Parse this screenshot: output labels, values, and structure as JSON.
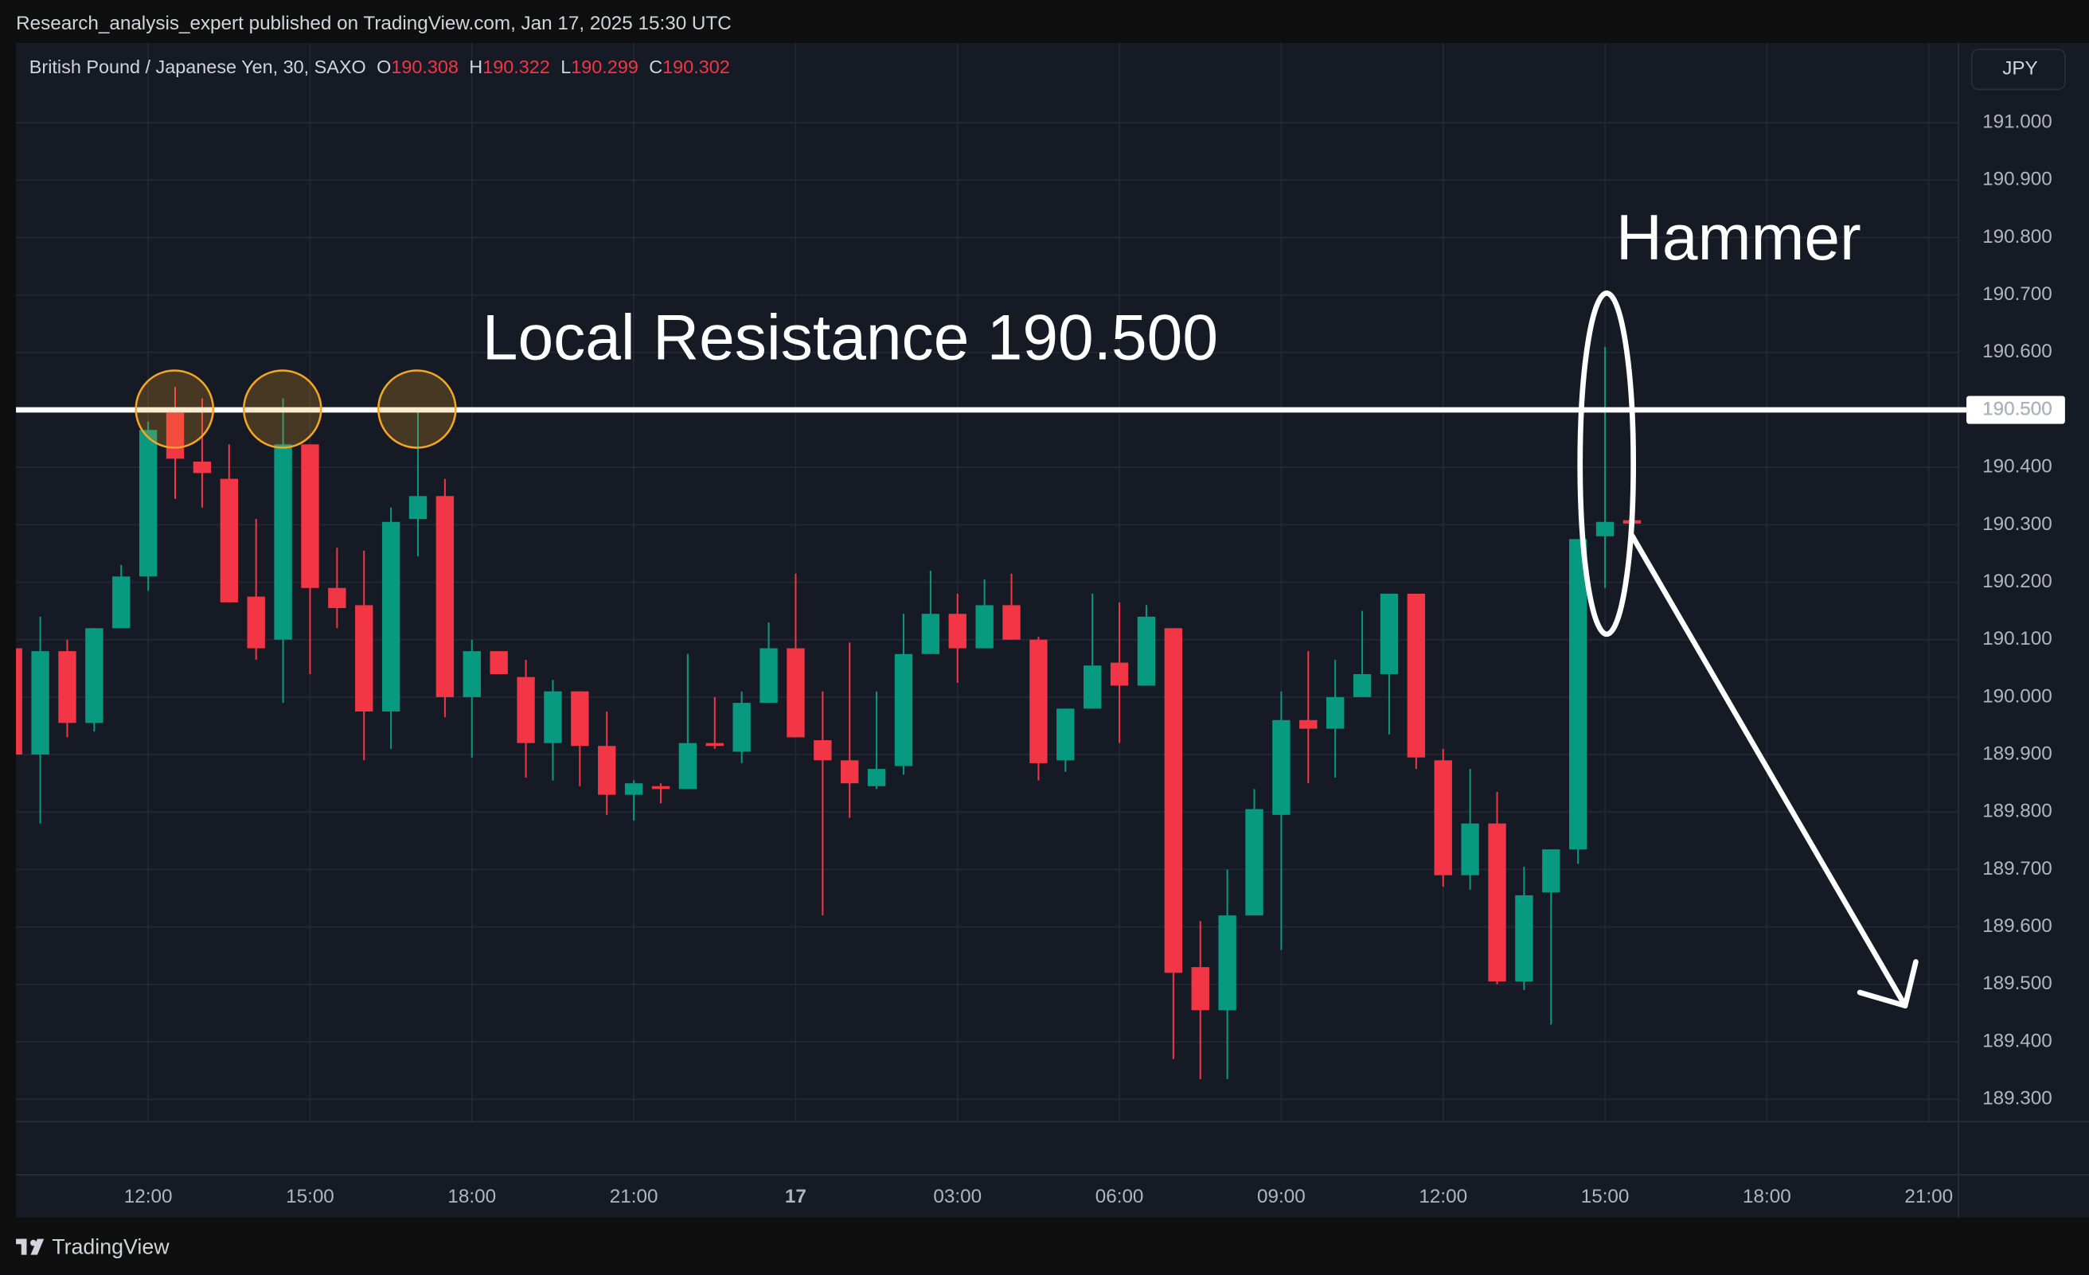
{
  "header": {
    "publisher": "Research_analysis_expert published on TradingView.com, Jan 17, 2025 15:30 UTC"
  },
  "chart_data": {
    "type": "candlestick",
    "title": "British Pound / Japanese Yen, 30, SAXO",
    "ohlc_labels": [
      "O",
      "H",
      "L",
      "C"
    ],
    "currency": "JPY",
    "up_color": "#089981",
    "down_color": "#f23645",
    "x": [
      0,
      1,
      2,
      3,
      4,
      5,
      6,
      7,
      8,
      9,
      10,
      11,
      12,
      13,
      14,
      15,
      16,
      17,
      18,
      19,
      20,
      21,
      22,
      23,
      24,
      25,
      26,
      27,
      28,
      29,
      30,
      31,
      32,
      33,
      34,
      35,
      36,
      37,
      38,
      39,
      40,
      41,
      42,
      43,
      44,
      45,
      46,
      47,
      48,
      49,
      50,
      51,
      52,
      53,
      54,
      55,
      56,
      57,
      58,
      59,
      60
    ],
    "open": [
      190.085,
      189.9,
      190.08,
      189.955,
      190.12,
      190.21,
      190.495,
      190.41,
      190.38,
      190.175,
      190.1,
      190.44,
      190.19,
      190.16,
      189.975,
      190.31,
      190.35,
      190.0,
      190.08,
      190.035,
      189.92,
      190.01,
      189.915,
      189.83,
      189.845,
      189.84,
      189.92,
      189.905,
      189.99,
      190.085,
      189.925,
      189.89,
      189.845,
      189.88,
      190.075,
      190.145,
      190.085,
      190.16,
      190.1,
      189.89,
      189.98,
      190.06,
      190.02,
      190.12,
      189.53,
      189.455,
      189.62,
      189.795,
      189.96,
      189.945,
      190.0,
      190.04,
      190.18,
      189.89,
      189.69,
      189.78,
      189.505,
      189.66,
      189.735,
      190.28,
      190.308
    ],
    "high": [
      190.09,
      190.14,
      190.1,
      190.12,
      190.23,
      190.48,
      190.54,
      190.52,
      190.44,
      190.31,
      190.52,
      190.44,
      190.26,
      190.255,
      190.33,
      190.5,
      190.38,
      190.1,
      190.08,
      190.065,
      190.03,
      190.01,
      189.975,
      189.855,
      189.85,
      190.075,
      190.0,
      190.01,
      190.13,
      190.215,
      190.01,
      190.095,
      190.01,
      190.145,
      190.22,
      190.18,
      190.205,
      190.215,
      190.105,
      189.98,
      190.18,
      190.165,
      190.16,
      190.12,
      189.61,
      189.7,
      189.84,
      190.01,
      190.08,
      190.065,
      190.15,
      190.18,
      190.18,
      189.91,
      189.875,
      189.835,
      189.705,
      189.735,
      190.275,
      190.61,
      190.322
    ],
    "low": [
      189.89,
      189.78,
      189.93,
      189.94,
      190.12,
      190.185,
      190.345,
      190.33,
      190.165,
      190.065,
      189.99,
      190.04,
      190.12,
      189.89,
      189.91,
      190.245,
      189.965,
      189.895,
      190.04,
      189.86,
      189.855,
      189.845,
      189.795,
      189.785,
      189.815,
      189.84,
      189.91,
      189.885,
      189.99,
      189.93,
      189.62,
      189.79,
      189.84,
      189.865,
      190.075,
      190.025,
      190.085,
      190.1,
      189.855,
      189.87,
      189.98,
      189.92,
      190.02,
      189.37,
      189.335,
      189.335,
      189.62,
      189.56,
      189.85,
      189.86,
      190.0,
      189.935,
      189.875,
      189.67,
      189.665,
      189.5,
      189.49,
      189.43,
      189.71,
      190.19,
      190.299
    ],
    "close": [
      189.9,
      190.08,
      189.955,
      190.12,
      190.21,
      190.465,
      190.415,
      190.39,
      190.165,
      190.085,
      190.44,
      190.19,
      190.155,
      189.975,
      190.305,
      190.35,
      190.0,
      190.08,
      190.04,
      189.92,
      190.01,
      189.915,
      189.83,
      189.85,
      189.84,
      189.92,
      189.915,
      189.99,
      190.085,
      189.93,
      189.89,
      189.85,
      189.875,
      190.075,
      190.145,
      190.085,
      190.16,
      190.1,
      189.885,
      189.98,
      190.055,
      190.02,
      190.14,
      189.52,
      189.455,
      189.62,
      189.805,
      189.96,
      189.945,
      190.0,
      190.04,
      190.18,
      189.895,
      189.69,
      189.78,
      189.505,
      189.655,
      189.735,
      190.275,
      190.305,
      190.302
    ],
    "xlim": [
      0.1,
      72.1
    ],
    "xticks": [
      {
        "value": 5,
        "label": "12:00"
      },
      {
        "value": 11,
        "label": "15:00"
      },
      {
        "value": 17,
        "label": "18:00"
      },
      {
        "value": 23,
        "label": "21:00"
      },
      {
        "value": 29,
        "label": "17"
      },
      {
        "value": 35,
        "label": "03:00"
      },
      {
        "value": 41,
        "label": "06:00"
      },
      {
        "value": 47,
        "label": "09:00"
      },
      {
        "value": 53,
        "label": "12:00"
      },
      {
        "value": 59,
        "label": "15:00"
      },
      {
        "value": 65,
        "label": "18:00"
      },
      {
        "value": 71,
        "label": "21:00"
      }
    ],
    "ylim": [
      189.261,
      191.139
    ],
    "yticks": [
      {
        "value": 189.3,
        "label": "189.300"
      },
      {
        "value": 189.4,
        "label": "189.400"
      },
      {
        "value": 189.5,
        "label": "189.500"
      },
      {
        "value": 189.6,
        "label": "189.600"
      },
      {
        "value": 189.7,
        "label": "189.700"
      },
      {
        "value": 189.8,
        "label": "189.800"
      },
      {
        "value": 189.9,
        "label": "189.900"
      },
      {
        "value": 190.0,
        "label": "190.000"
      },
      {
        "value": 190.1,
        "label": "190.100"
      },
      {
        "value": 190.2,
        "label": "190.200"
      },
      {
        "value": 190.3,
        "label": "190.300"
      },
      {
        "value": 190.4,
        "label": "190.400"
      },
      {
        "value": 190.5,
        "label": "190.500"
      },
      {
        "value": 190.6,
        "label": "190.600"
      },
      {
        "value": 190.7,
        "label": "190.700"
      },
      {
        "value": 190.8,
        "label": "190.800"
      },
      {
        "value": 190.9,
        "label": "190.900"
      },
      {
        "value": 191.0,
        "label": "191.000"
      }
    ],
    "grid": true,
    "resistance": {
      "value": 190.5,
      "label": "190.500"
    },
    "annotations": [
      "Local Resistance 190.500",
      "Hammer"
    ]
  },
  "footer": {
    "brand": "TradingView"
  }
}
